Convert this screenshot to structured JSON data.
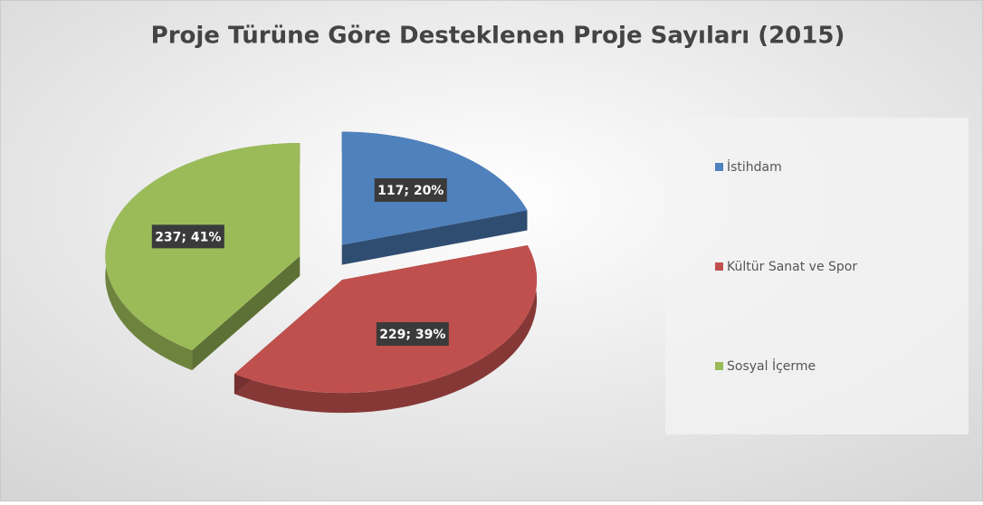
{
  "chart_data": {
    "type": "pie",
    "title": "Proje Türüne Göre Desteklenen Proje Sayıları (2015)",
    "categories": [
      "İstihdam",
      "Kültür Sanat ve Spor",
      "Sosyal İçerme"
    ],
    "values": [
      117,
      229,
      237
    ],
    "value_labels": [
      "117; 20%",
      "229; 39%",
      "237; 41%"
    ],
    "colors": [
      "#4f81bd",
      "#c0504d",
      "#9bbb59"
    ],
    "legend": "right"
  }
}
